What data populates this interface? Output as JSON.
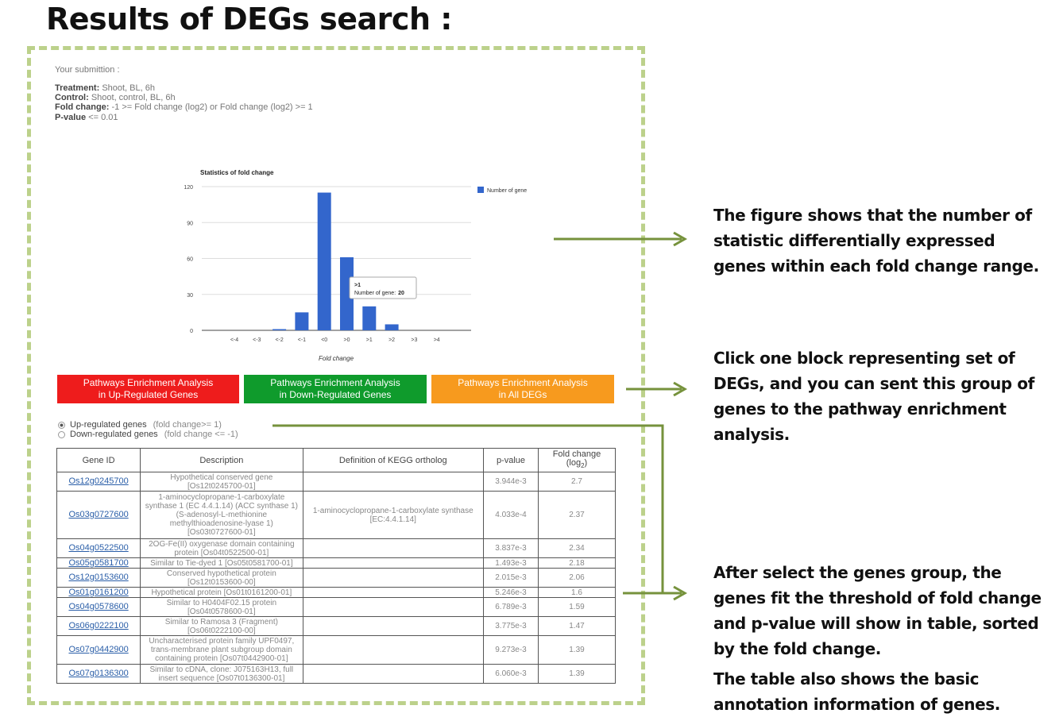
{
  "page_title": "Results of DEGs search :",
  "submission": {
    "heading": "Your submittion :",
    "treatment_label": "Treatment:",
    "treatment_value": "Shoot, BL, 6h",
    "control_label": "Control:",
    "control_value": "Shoot, control, BL, 6h",
    "fold_label": "Fold change:",
    "fold_value": "-1 >= Fold change (log2) or Fold change (log2) >= 1",
    "pvalue_label": "P-value",
    "pvalue_value": "<= 0.01"
  },
  "chart_data": {
    "type": "bar",
    "title": "Statistics of fold change",
    "xlabel": "Fold change",
    "ylabel": "",
    "categories": [
      "<-4",
      "<-3",
      "<-2",
      "<-1",
      "<0",
      ">0",
      ">1",
      ">2",
      ">3",
      ">4"
    ],
    "series": [
      {
        "name": "Number of gene",
        "values": [
          0,
          0,
          1,
          15,
          115,
          61,
          20,
          5,
          0,
          0
        ]
      }
    ],
    "yticks": [
      0,
      30,
      60,
      90,
      120
    ],
    "ylim": [
      0,
      120
    ],
    "legend_position": "right",
    "color": "#3366cc",
    "tooltip": {
      "category": ">1",
      "label": "Number of gene:",
      "value": "20"
    }
  },
  "buttons": {
    "up": {
      "line1": "Pathways Enrichment Analysis",
      "line2": "in Up-Regulated Genes",
      "color": "#ee1c1c"
    },
    "down": {
      "line1": "Pathways Enrichment Analysis",
      "line2": "in Down-Regulated Genes",
      "color": "#0f9b2c"
    },
    "all": {
      "line1": "Pathways Enrichment Analysis",
      "line2": "in All DEGs",
      "color": "#f79a1e"
    }
  },
  "radios": {
    "up": {
      "label": "Up-regulated genes",
      "hint": "(fold change>= 1)"
    },
    "down": {
      "label": "Down-regulated genes",
      "hint": "(fold change <= -1)"
    }
  },
  "table": {
    "headers": [
      "Gene ID",
      "Description",
      "Definition of KEGG ortholog",
      "p-value",
      "Fold change (log2)"
    ],
    "rows": [
      {
        "id": "Os12g0245700",
        "desc": "Hypothetical conserved gene [Os12t0245700-01]",
        "kegg": "",
        "p": "3.944e-3",
        "fc": "2.7"
      },
      {
        "id": "Os03g0727600",
        "desc": "1-aminocyclopropane-1-carboxylate synthase 1 (EC 4.4.1.14) (ACC synthase 1) (S-adenosyl-L-methionine methylthioadenosine-lyase 1) [Os03t0727600-01]",
        "kegg": "1-aminocyclopropane-1-carboxylate synthase [EC:4.4.1.14]",
        "p": "4.033e-4",
        "fc": "2.37"
      },
      {
        "id": "Os04g0522500",
        "desc": "2OG-Fe(II) oxygenase domain containing protein [Os04t0522500-01]",
        "kegg": "",
        "p": "3.837e-3",
        "fc": "2.34"
      },
      {
        "id": "Os05g0581700",
        "desc": "Similar to Tie-dyed 1 [Os05t0581700-01]",
        "kegg": "",
        "p": "1.493e-3",
        "fc": "2.18"
      },
      {
        "id": "Os12g0153600",
        "desc": "Conserved hypothetical protein [Os12t0153600-00]",
        "kegg": "",
        "p": "2.015e-3",
        "fc": "2.06"
      },
      {
        "id": "Os01g0161200",
        "desc": "Hypothetical protein [Os01t0161200-01]",
        "kegg": "",
        "p": "5.246e-3",
        "fc": "1.6"
      },
      {
        "id": "Os04g0578600",
        "desc": "Similar to H0404F02.15 protein [Os04t0578600-01]",
        "kegg": "",
        "p": "6.789e-3",
        "fc": "1.59"
      },
      {
        "id": "Os06g0222100",
        "desc": "Similar to Ramosa 3 (Fragment) [Os06t0222100-00]",
        "kegg": "",
        "p": "3.775e-3",
        "fc": "1.47"
      },
      {
        "id": "Os07g0442900",
        "desc": "Uncharacterised protein family UPF0497, trans-membrane plant subgroup domain containing protein [Os07t0442900-01]",
        "kegg": "",
        "p": "9.273e-3",
        "fc": "1.39"
      },
      {
        "id": "Os07g0136300",
        "desc": "Similar to cDNA, clone: J075163H13, full insert sequence [Os07t0136300-01]",
        "kegg": "",
        "p": "6.060e-3",
        "fc": "1.39"
      }
    ]
  },
  "notes": {
    "figure": [
      "The figure shows that the number of",
      "statistic differentially expressed",
      "genes within each fold change range."
    ],
    "click": [
      "Click one block representing set of",
      "DEGs, and you can sent this group of",
      "genes to the pathway enrichment",
      "analysis."
    ],
    "after": [
      "After select the genes group, the",
      "genes fit the threshold of fold change",
      "and p-value will show in table, sorted",
      "by the fold change."
    ],
    "table": [
      "The table also shows the basic",
      "annotation information of genes."
    ]
  },
  "arrow_color": "#76923c"
}
